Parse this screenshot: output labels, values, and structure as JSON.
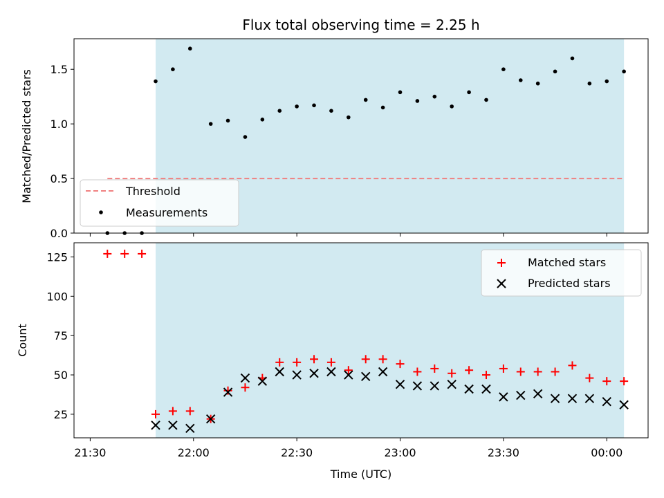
{
  "chart_data": {
    "type": "scatter",
    "title": "Flux total observing time = 2.25 h",
    "xlabel": "Time (UTC)",
    "x_ticks": [
      "21:30",
      "22:00",
      "22:30",
      "23:00",
      "23:30",
      "00:00"
    ],
    "shaded_span": {
      "start": "21:49",
      "end": "00:05",
      "color": "#add8e6"
    },
    "time_points": [
      "21:35",
      "21:40",
      "21:45",
      "21:49",
      "21:54",
      "21:59",
      "22:05",
      "22:10",
      "22:15",
      "22:20",
      "22:25",
      "22:30",
      "22:35",
      "22:40",
      "22:45",
      "22:50",
      "22:55",
      "23:00",
      "23:05",
      "23:10",
      "23:15",
      "23:20",
      "23:25",
      "23:30",
      "23:35",
      "23:40",
      "23:45",
      "23:50",
      "23:55",
      "00:00",
      "00:05"
    ],
    "panels": [
      {
        "ylabel": "Matched/Predicted stars",
        "ylim": [
          0,
          1.78
        ],
        "y_ticks": [
          "0.0",
          "0.5",
          "1.0",
          "1.5"
        ],
        "threshold": {
          "name": "Threshold",
          "value": 0.5,
          "from": "21:35",
          "to": "00:05",
          "color": "#f08080"
        },
        "series": [
          {
            "name": "Measurements",
            "marker": "dot",
            "color": "#000000",
            "values": [
              0,
              0,
              0,
              1.39,
              1.5,
              1.69,
              1.0,
              1.03,
              0.88,
              1.04,
              1.12,
              1.16,
              1.17,
              1.12,
              1.06,
              1.22,
              1.15,
              1.29,
              1.21,
              1.25,
              1.16,
              1.29,
              1.22,
              1.5,
              1.4,
              1.37,
              1.48,
              1.6,
              1.37,
              1.39,
              1.48
            ]
          }
        ],
        "legend_position": "lower-left"
      },
      {
        "ylabel": "Count",
        "ylim": [
          10,
          134
        ],
        "y_ticks": [
          "25",
          "50",
          "75",
          "100",
          "125"
        ],
        "series": [
          {
            "name": "Matched stars",
            "marker": "plus",
            "color": "#ff0000",
            "values": [
              127,
              127,
              127,
              25,
              27,
              27,
              22,
              40,
              42,
              48,
              58,
              58,
              60,
              58,
              53,
              60,
              60,
              57,
              52,
              54,
              51,
              53,
              50,
              54,
              52,
              52,
              52,
              56,
              48,
              46,
              46
            ]
          },
          {
            "name": "Predicted stars",
            "marker": "x",
            "color": "#000000",
            "values": [
              null,
              null,
              null,
              18,
              18,
              16,
              22,
              39,
              48,
              46,
              52,
              50,
              51,
              52,
              50,
              49,
              52,
              44,
              43,
              43,
              44,
              41,
              41,
              36,
              37,
              38,
              35,
              35,
              35,
              33,
              31
            ]
          }
        ],
        "legend_position": "upper-right"
      }
    ]
  }
}
